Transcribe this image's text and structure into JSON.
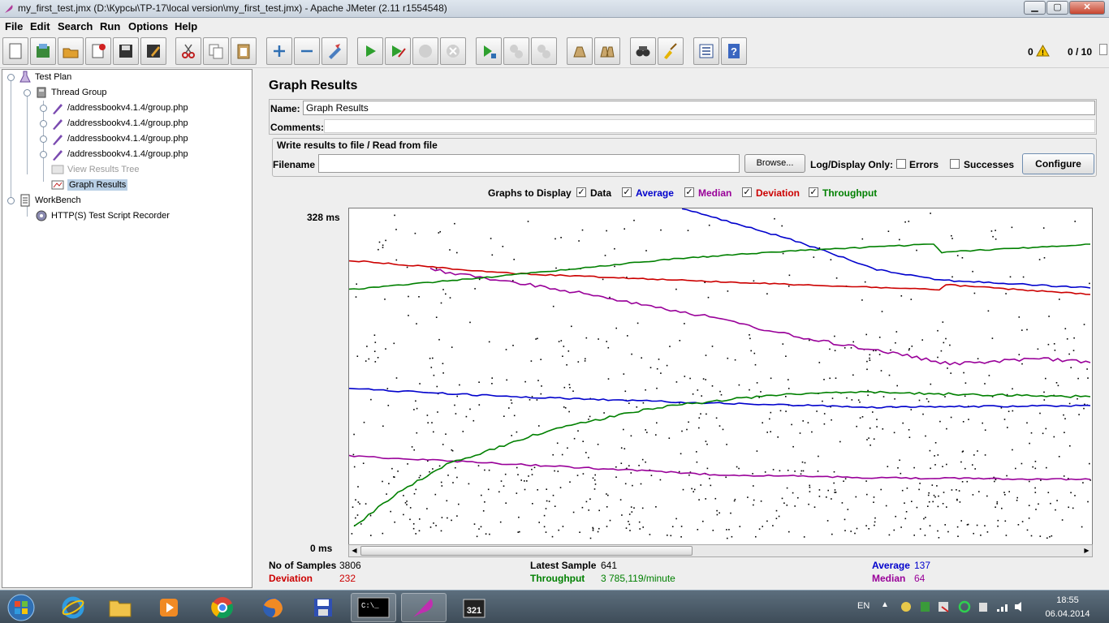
{
  "window": {
    "title": "my_first_test.jmx (D:\\Курсы\\TP-17\\local version\\my_first_test.jmx) - Apache JMeter (2.11 r1554548)",
    "minimize": "▁",
    "maximize": "▢",
    "close": "✕"
  },
  "menu": [
    "File",
    "Edit",
    "Search",
    "Run",
    "Options",
    "Help"
  ],
  "toolbar": {
    "buttons": [
      "new-icon",
      "templates-icon",
      "open-icon",
      "close-icon",
      "save-icon",
      "save-as-icon",
      "cut-icon",
      "copy-icon",
      "paste-icon",
      "expand-icon",
      "collapse-icon",
      "toggle-icon",
      "start-icon",
      "start-no-pause-icon",
      "stop-icon",
      "shutdown-icon",
      "remote-start-icon",
      "remote-stop-icon",
      "remote-shutdown-icon",
      "clear-icon",
      "clear-all-icon",
      "search-icon",
      "reset-search-icon",
      "function-helper-icon",
      "help-icon"
    ],
    "errors_count": "0",
    "threads": "0 / 10"
  },
  "tree": {
    "items": [
      {
        "label": "Test Plan",
        "icon": "test-plan-icon"
      },
      {
        "label": "Thread Group",
        "icon": "thread-group-icon"
      },
      {
        "label": "/addressbookv4.1.4/group.php",
        "icon": "sampler-icon"
      },
      {
        "label": "/addressbookv4.1.4/group.php",
        "icon": "sampler-icon"
      },
      {
        "label": "/addressbookv4.1.4/group.php",
        "icon": "sampler-icon"
      },
      {
        "label": "/addressbookv4.1.4/group.php",
        "icon": "sampler-icon"
      },
      {
        "label": "View Results Tree",
        "icon": "listener-icon"
      },
      {
        "label": "Graph Results",
        "icon": "graph-icon"
      },
      {
        "label": "WorkBench",
        "icon": "workbench-icon"
      },
      {
        "label": "HTTP(S) Test Script Recorder",
        "icon": "recorder-icon"
      }
    ]
  },
  "panel": {
    "title": "Graph Results",
    "name_label": "Name:",
    "name_value": "Graph Results",
    "comments_label": "Comments:",
    "comments_value": "",
    "file_legend": "Write results to file / Read from file",
    "filename_label": "Filename",
    "filename_value": "",
    "browse": "Browse...",
    "log_display": "Log/Display Only:",
    "errors": "Errors",
    "successes": "Successes",
    "configure": "Configure",
    "graphs_to_display": "Graphs to Display",
    "graph_options": [
      {
        "label": "Data",
        "checked": true,
        "color": "#000000"
      },
      {
        "label": "Average",
        "checked": true,
        "color": "#0000cc"
      },
      {
        "label": "Median",
        "checked": true,
        "color": "#990099"
      },
      {
        "label": "Deviation",
        "checked": true,
        "color": "#cc0000"
      },
      {
        "label": "Throughput",
        "checked": true,
        "color": "#008000"
      }
    ],
    "y_max_label": "328  ms",
    "y_min_label": "0  ms"
  },
  "stats": {
    "samples_label": "No of Samples",
    "samples_value": "3806",
    "latest_label": "Latest Sample",
    "latest_value": "641",
    "average_label": "Average",
    "average_value": "137",
    "deviation_label": "Deviation",
    "deviation_value": "232",
    "throughput_label": "Throughput",
    "throughput_value": "3 785,119/minute",
    "median_label": "Median",
    "median_value": "64"
  },
  "taskbar": {
    "apps": [
      "windows-start-icon",
      "internet-explorer-icon",
      "file-explorer-icon",
      "media-player-icon",
      "chrome-icon",
      "firefox-icon",
      "save-disk-icon",
      "command-prompt-icon",
      "jmeter-feather-icon",
      "media-classic-icon"
    ],
    "language": "EN",
    "time": "18:55",
    "date": "06.04.2014"
  },
  "chart_data": {
    "type": "line",
    "title": "",
    "ylim": [
      0,
      328
    ],
    "y_unit": "ms",
    "series_colors": {
      "Average": "#0000cc",
      "Median": "#990099",
      "Deviation": "#cc0000",
      "Throughput": "#008000",
      "Data": "#000000"
    }
  }
}
